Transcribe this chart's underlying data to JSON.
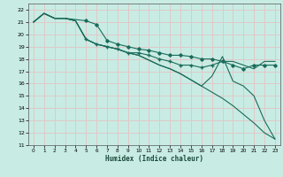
{
  "xlabel": "Humidex (Indice chaleur)",
  "bg_color": "#c8ece4",
  "grid_color": "#e0c8c8",
  "line_color": "#1a6b5a",
  "xlim": [
    -0.5,
    23.5
  ],
  "ylim": [
    11,
    22.5
  ],
  "yticks": [
    11,
    12,
    13,
    14,
    15,
    16,
    17,
    18,
    19,
    20,
    21,
    22
  ],
  "xticks": [
    0,
    1,
    2,
    3,
    4,
    5,
    6,
    7,
    8,
    9,
    10,
    11,
    12,
    13,
    14,
    15,
    16,
    17,
    18,
    19,
    20,
    21,
    22,
    23
  ],
  "lines": [
    {
      "x": [
        0,
        1,
        2,
        3,
        4,
        5,
        6,
        7,
        8,
        9,
        10,
        11,
        12,
        13,
        14,
        15,
        16,
        17,
        18,
        19,
        20,
        21,
        22,
        23
      ],
      "y": [
        21.0,
        21.7,
        21.3,
        21.3,
        21.2,
        21.1,
        20.8,
        19.5,
        19.2,
        19.0,
        18.8,
        18.7,
        18.5,
        18.3,
        18.3,
        18.2,
        18.0,
        18.0,
        17.8,
        17.5,
        17.2,
        17.5,
        17.5,
        17.5
      ],
      "marker": "D",
      "markersize": 2.0,
      "markevery": [
        5,
        6,
        7,
        8,
        9,
        10,
        11,
        12,
        13,
        14,
        15,
        16,
        17,
        18,
        19,
        20,
        21,
        22,
        23
      ]
    },
    {
      "x": [
        0,
        1,
        2,
        3,
        4,
        5,
        6,
        7,
        8,
        9,
        10,
        11,
        12,
        13,
        14,
        15,
        16,
        17,
        18,
        19,
        20,
        21,
        22,
        23
      ],
      "y": [
        21.0,
        21.7,
        21.3,
        21.3,
        21.1,
        19.6,
        19.2,
        19.0,
        18.8,
        18.5,
        18.5,
        18.3,
        18.0,
        17.8,
        17.5,
        17.5,
        17.3,
        17.5,
        17.8,
        17.8,
        17.5,
        17.2,
        17.8,
        17.8
      ],
      "marker": "+",
      "markersize": 2.5,
      "markevery": [
        5,
        6,
        7,
        8,
        9,
        10,
        11,
        12,
        13,
        14,
        15,
        16,
        17,
        18
      ]
    },
    {
      "x": [
        0,
        1,
        2,
        3,
        4,
        5,
        6,
        7,
        8,
        9,
        10,
        11,
        12,
        13,
        14,
        15,
        16,
        17,
        18,
        19,
        20,
        21,
        22,
        23
      ],
      "y": [
        21.0,
        21.7,
        21.3,
        21.3,
        21.1,
        19.6,
        19.2,
        19.0,
        18.8,
        18.5,
        18.3,
        17.9,
        17.5,
        17.2,
        16.8,
        16.3,
        15.8,
        15.3,
        14.8,
        14.2,
        13.5,
        12.8,
        12.0,
        11.5
      ],
      "marker": null
    },
    {
      "x": [
        0,
        1,
        2,
        3,
        4,
        5,
        6,
        7,
        8,
        9,
        10,
        11,
        12,
        13,
        14,
        15,
        16,
        17,
        18,
        19,
        20,
        21,
        22,
        23
      ],
      "y": [
        21.0,
        21.7,
        21.3,
        21.3,
        21.1,
        19.6,
        19.2,
        19.0,
        18.8,
        18.5,
        18.3,
        17.9,
        17.5,
        17.2,
        16.8,
        16.3,
        15.8,
        16.6,
        18.2,
        16.2,
        15.8,
        15.0,
        13.0,
        11.5
      ],
      "marker": null
    }
  ]
}
